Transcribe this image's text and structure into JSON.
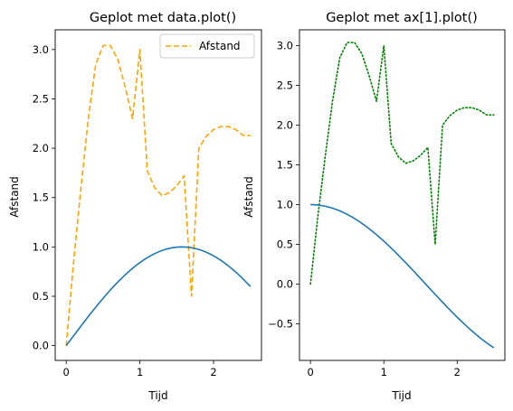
{
  "chart_data": [
    {
      "type": "line",
      "title": "Geplot met data.plot()",
      "xlabel": "Tijd",
      "ylabel": "Afstand",
      "xlim": [
        -0.15,
        2.65
      ],
      "ylim": [
        -0.15,
        3.2
      ],
      "xticks": [
        0,
        1,
        2
      ],
      "yticks": [
        0.0,
        0.5,
        1.0,
        1.5,
        2.0,
        2.5,
        3.0
      ],
      "ytick_labels": [
        "0.0",
        "0.5",
        "1.0",
        "1.5",
        "2.0",
        "2.5",
        "3.0"
      ],
      "legend": {
        "position": "upper right",
        "entries": [
          "Afstand"
        ]
      },
      "series": [
        {
          "name": "Afstand",
          "color": "#ffa500",
          "style": "dashed",
          "x": [
            0,
            0.1,
            0.2,
            0.3,
            0.4,
            0.5,
            0.6,
            0.7,
            0.8,
            0.9,
            1.0,
            1.1,
            1.2,
            1.3,
            1.4,
            1.5,
            1.6,
            1.7,
            1.8,
            1.9,
            2.0,
            2.1,
            2.2,
            2.3,
            2.4,
            2.5
          ],
          "y": [
            0.0,
            0.85,
            1.6,
            2.3,
            2.85,
            3.04,
            3.04,
            2.9,
            2.62,
            2.3,
            3.0,
            1.77,
            1.6,
            1.52,
            1.55,
            1.62,
            1.72,
            0.5,
            2.0,
            2.12,
            2.19,
            2.22,
            2.22,
            2.19,
            2.13,
            2.13
          ]
        },
        {
          "color": "#1f77b4",
          "style": "solid",
          "function": "sin(x)",
          "x_range": [
            0,
            2.5
          ]
        }
      ]
    },
    {
      "type": "line",
      "title": "Geplot met ax[1].plot()",
      "xlabel": "Tijd",
      "ylabel": "Afstand",
      "xlim": [
        -0.15,
        2.65
      ],
      "ylim": [
        -0.96,
        3.2
      ],
      "xticks": [
        0,
        1,
        2
      ],
      "yticks": [
        -0.5,
        0.0,
        0.5,
        1.0,
        1.5,
        2.0,
        2.5,
        3.0
      ],
      "ytick_labels": [
        "−0.5",
        "0.0",
        "0.5",
        "1.0",
        "1.5",
        "2.0",
        "2.5",
        "3.0"
      ],
      "series": [
        {
          "color": "#008000",
          "style": "dotted",
          "x": [
            0,
            0.1,
            0.2,
            0.3,
            0.4,
            0.5,
            0.6,
            0.7,
            0.8,
            0.9,
            1.0,
            1.1,
            1.2,
            1.3,
            1.4,
            1.5,
            1.6,
            1.7,
            1.8,
            1.9,
            2.0,
            2.1,
            2.2,
            2.3,
            2.4,
            2.5
          ],
          "y": [
            0.0,
            0.85,
            1.6,
            2.3,
            2.85,
            3.04,
            3.04,
            2.9,
            2.62,
            2.3,
            3.0,
            1.77,
            1.6,
            1.52,
            1.55,
            1.62,
            1.72,
            0.5,
            2.0,
            2.12,
            2.19,
            2.22,
            2.22,
            2.19,
            2.13,
            2.13
          ]
        },
        {
          "color": "#1f77b4",
          "style": "solid",
          "function": "cos(x)",
          "x_range": [
            0,
            2.5
          ]
        }
      ]
    }
  ]
}
